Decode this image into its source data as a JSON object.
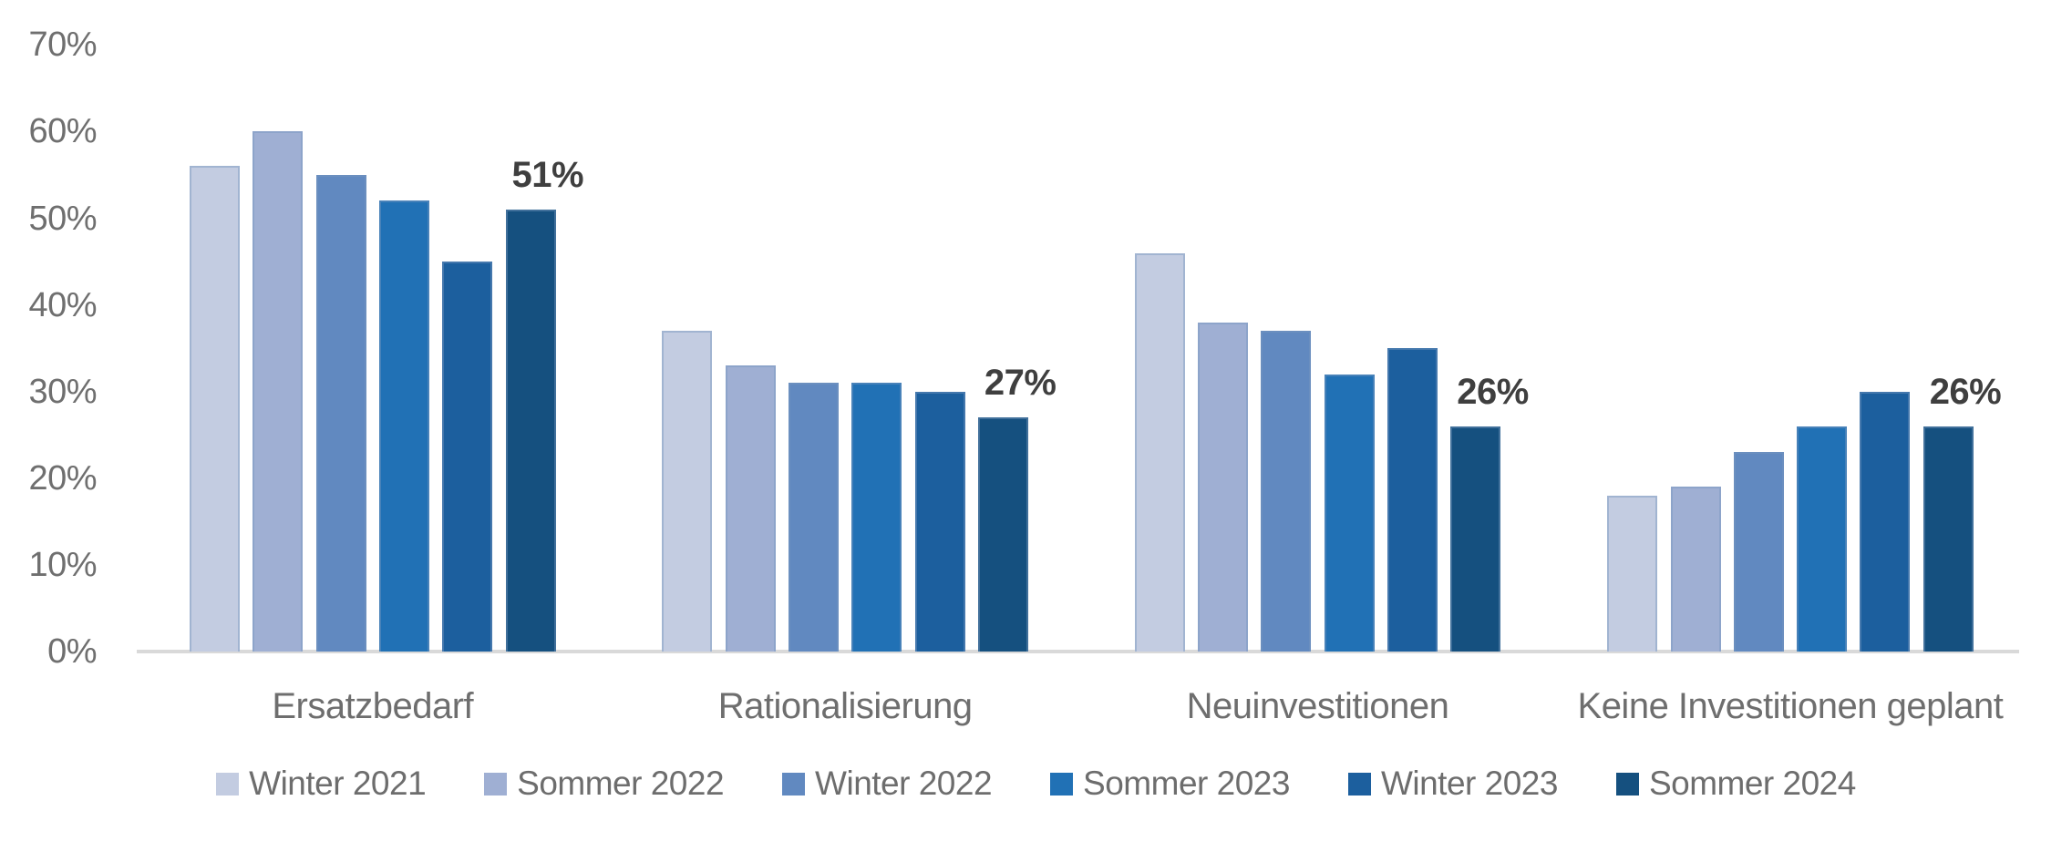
{
  "chart_data": {
    "type": "bar",
    "title": "",
    "categories": [
      "Ersatzbedarf",
      "Rationalisierung",
      "Neuinvestitionen",
      "Keine Investitionen geplant"
    ],
    "series": [
      {
        "name": "Winter 2021",
        "color": "#c3cce1",
        "values": [
          56,
          37,
          46,
          18
        ]
      },
      {
        "name": "Sommer 2022",
        "color": "#9fafd3",
        "values": [
          60,
          33,
          38,
          19
        ]
      },
      {
        "name": "Winter 2022",
        "color": "#6189c0",
        "values": [
          55,
          31,
          37,
          23
        ]
      },
      {
        "name": "Sommer 2023",
        "color": "#2171b5",
        "values": [
          52,
          31,
          32,
          26
        ]
      },
      {
        "name": "Winter 2023",
        "color": "#1c5f9e",
        "values": [
          45,
          30,
          35,
          30
        ]
      },
      {
        "name": "Sommer 2024",
        "color": "#15507f",
        "values": [
          51,
          27,
          26,
          26
        ]
      }
    ],
    "end_labels": [
      "51%",
      "27%",
      "26%",
      "26%"
    ],
    "y_axis": {
      "unit": "%",
      "min": 0,
      "max": 70,
      "tick_step": 10,
      "tick_labels": [
        "0%",
        "10%",
        "20%",
        "30%",
        "40%",
        "50%",
        "60%",
        "70%"
      ]
    },
    "grid": "none",
    "legend_position": "bottom",
    "annotation_note": "only the last series (Sommer 2024) bars carry visible data labels"
  },
  "colors": {
    "background": "#ffffff",
    "axis_line": "#d9d9d9",
    "tick_text": "#6f6f6f",
    "category_text": "#6e6e6e",
    "legend_text": "#6d6d6d",
    "annotation_text": "#3f3f3f"
  }
}
